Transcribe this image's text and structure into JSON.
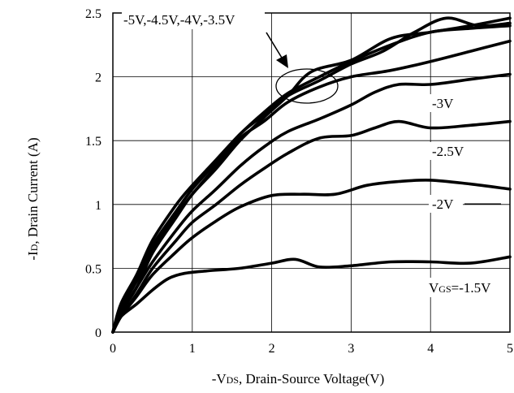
{
  "chart_data": {
    "type": "line",
    "xlim": [
      0,
      5
    ],
    "ylim": [
      0,
      2.5
    ],
    "grid": true,
    "x_ticks": [
      "0",
      "1",
      "2",
      "3",
      "4",
      "5"
    ],
    "y_ticks": [
      "0",
      "0.5",
      "1",
      "1.5",
      "2",
      "2.5"
    ],
    "xlabel": {
      "prefix": "-V",
      "sub": "DS",
      "suffix": ", Drain-Source Voltage(V)"
    },
    "ylabel": {
      "prefix": "-I",
      "sub": "D",
      "suffix": ", Drain Current (A)"
    },
    "annotations": {
      "group": "-5V,-4.5V,-4V,-3.5V",
      "l3": "-3V",
      "l25": "-2.5V",
      "l2": "-2V",
      "vgs_prefix": "V",
      "vgs_sub": "GS",
      "vgs_suffix": "=-1.5V"
    },
    "series": [
      {
        "label": "-5V",
        "x": [
          0,
          0.1,
          0.3,
          0.5,
          0.8,
          1.0,
          1.3,
          1.6,
          1.9,
          2.2,
          2.6,
          3.0,
          3.5,
          4.0,
          4.5,
          5.0
        ],
        "y": [
          0,
          0.22,
          0.45,
          0.72,
          1.0,
          1.15,
          1.35,
          1.55,
          1.72,
          1.87,
          2.0,
          2.12,
          2.25,
          2.35,
          2.38,
          2.4
        ]
      },
      {
        "label": "-4.5V",
        "x": [
          0,
          0.1,
          0.3,
          0.5,
          0.8,
          1.0,
          1.3,
          1.6,
          1.9,
          2.2,
          2.6,
          3.0,
          3.4,
          3.8,
          4.2,
          4.6,
          5.0
        ],
        "y": [
          0,
          0.2,
          0.42,
          0.68,
          0.95,
          1.12,
          1.33,
          1.55,
          1.7,
          1.85,
          1.97,
          2.1,
          2.2,
          2.35,
          2.46,
          2.4,
          2.42
        ]
      },
      {
        "label": "-4V",
        "x": [
          0,
          0.1,
          0.3,
          0.5,
          0.8,
          1.0,
          1.3,
          1.6,
          1.9,
          2.2,
          2.5,
          3.0,
          3.5,
          4.0,
          4.5,
          5.0
        ],
        "y": [
          0,
          0.15,
          0.35,
          0.62,
          0.9,
          1.08,
          1.28,
          1.5,
          1.68,
          1.85,
          2.04,
          2.13,
          2.3,
          2.35,
          2.4,
          2.46
        ]
      },
      {
        "label": "-3.5V",
        "x": [
          0,
          0.1,
          0.3,
          0.5,
          0.8,
          1.0,
          1.3,
          1.6,
          1.9,
          2.2,
          2.6,
          3.0,
          3.5,
          4.0,
          4.5,
          5.0
        ],
        "y": [
          0,
          0.18,
          0.4,
          0.65,
          0.92,
          1.08,
          1.3,
          1.52,
          1.65,
          1.8,
          1.92,
          2.0,
          2.05,
          2.12,
          2.2,
          2.28
        ]
      },
      {
        "label": "-3V",
        "x": [
          0,
          0.1,
          0.3,
          0.5,
          0.8,
          1.0,
          1.3,
          1.6,
          1.9,
          2.2,
          2.6,
          3.0,
          3.3,
          3.6,
          4.0,
          4.5,
          5.0
        ],
        "y": [
          0,
          0.15,
          0.35,
          0.55,
          0.8,
          0.95,
          1.12,
          1.3,
          1.45,
          1.57,
          1.67,
          1.78,
          1.88,
          1.94,
          1.94,
          1.98,
          2.02
        ]
      },
      {
        "label": "-2.5V",
        "x": [
          0,
          0.1,
          0.3,
          0.5,
          0.8,
          1.0,
          1.3,
          1.6,
          1.9,
          2.2,
          2.6,
          3.0,
          3.3,
          3.6,
          4.0,
          4.5,
          5.0
        ],
        "y": [
          0,
          0.12,
          0.3,
          0.5,
          0.72,
          0.86,
          1.0,
          1.15,
          1.28,
          1.4,
          1.52,
          1.54,
          1.6,
          1.65,
          1.6,
          1.62,
          1.65
        ]
      },
      {
        "label": "-2V",
        "x": [
          0,
          0.1,
          0.3,
          0.5,
          0.8,
          1.0,
          1.3,
          1.6,
          2.0,
          2.4,
          2.8,
          3.2,
          3.6,
          4.0,
          4.5,
          5.0
        ],
        "y": [
          0,
          0.12,
          0.28,
          0.45,
          0.63,
          0.74,
          0.87,
          0.98,
          1.07,
          1.08,
          1.08,
          1.15,
          1.18,
          1.19,
          1.16,
          1.12
        ]
      },
      {
        "label": "-1.5V",
        "x": [
          0,
          0.1,
          0.3,
          0.5,
          0.7,
          0.9,
          1.2,
          1.6,
          2.0,
          2.3,
          2.6,
          3.0,
          3.5,
          4.0,
          4.5,
          5.0
        ],
        "y": [
          0,
          0.12,
          0.22,
          0.33,
          0.42,
          0.46,
          0.48,
          0.5,
          0.54,
          0.57,
          0.51,
          0.52,
          0.55,
          0.55,
          0.54,
          0.59
        ]
      }
    ]
  }
}
